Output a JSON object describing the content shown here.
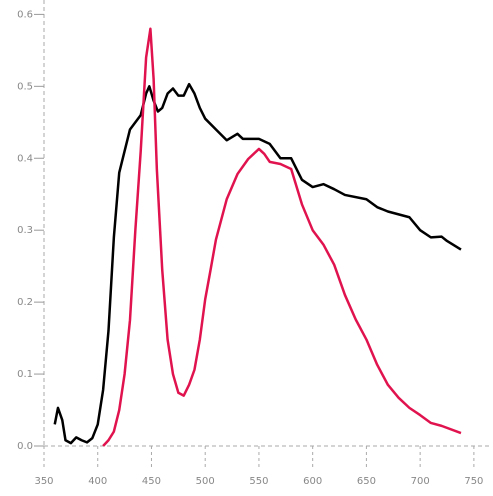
{
  "chart_data": {
    "type": "line",
    "xlim": [
      350,
      765
    ],
    "ylim": [
      0,
      0.62
    ],
    "xticks": [
      350,
      400,
      450,
      500,
      550,
      600,
      650,
      700,
      750
    ],
    "yticks": [
      {
        "value": 0,
        "label": "0.0"
      },
      0.1,
      0.2,
      0.3,
      0.4,
      0.5,
      0.6
    ],
    "grid": false,
    "series": [
      {
        "color": "#000000",
        "x": [
          360,
          363,
          367,
          370,
          375,
          380,
          385,
          390,
          395,
          400,
          405,
          410,
          415,
          420,
          425,
          430,
          440,
          445,
          448,
          452,
          456,
          460,
          465,
          470,
          475,
          480,
          485,
          490,
          495,
          500,
          510,
          520,
          530,
          535,
          550,
          560,
          570,
          580,
          590,
          600,
          610,
          620,
          630,
          650,
          660,
          670,
          690,
          700,
          710,
          720,
          725,
          738
        ],
        "values": [
          0.03,
          0.053,
          0.036,
          0.008,
          0.004,
          0.012,
          0.008,
          0.005,
          0.011,
          0.03,
          0.078,
          0.16,
          0.29,
          0.38,
          0.41,
          0.44,
          0.46,
          0.49,
          0.5,
          0.48,
          0.465,
          0.47,
          0.49,
          0.497,
          0.487,
          0.487,
          0.503,
          0.49,
          0.47,
          0.455,
          0.44,
          0.425,
          0.434,
          0.427,
          0.427,
          0.42,
          0.4,
          0.4,
          0.37,
          0.36,
          0.364,
          0.357,
          0.349,
          0.343,
          0.332,
          0.326,
          0.318,
          0.3,
          0.29,
          0.291,
          0.285,
          0.273
        ]
      },
      {
        "color": "#e0134f",
        "x": [
          405,
          410,
          415,
          420,
          425,
          430,
          435,
          440,
          445,
          449,
          452,
          455,
          460,
          465,
          470,
          475,
          480,
          485,
          490,
          495,
          500,
          505,
          510,
          520,
          530,
          540,
          550,
          555,
          560,
          570,
          580,
          590,
          600,
          610,
          620,
          630,
          640,
          650,
          660,
          670,
          680,
          690,
          700,
          710,
          720,
          738
        ],
        "values": [
          0.0,
          0.008,
          0.02,
          0.05,
          0.1,
          0.175,
          0.3,
          0.41,
          0.54,
          0.58,
          0.51,
          0.385,
          0.245,
          0.148,
          0.1,
          0.074,
          0.07,
          0.085,
          0.106,
          0.148,
          0.204,
          0.245,
          0.287,
          0.343,
          0.378,
          0.399,
          0.413,
          0.406,
          0.395,
          0.392,
          0.385,
          0.336,
          0.3,
          0.28,
          0.252,
          0.21,
          0.176,
          0.148,
          0.113,
          0.085,
          0.067,
          0.053,
          0.043,
          0.032,
          0.028,
          0.018
        ]
      }
    ]
  }
}
